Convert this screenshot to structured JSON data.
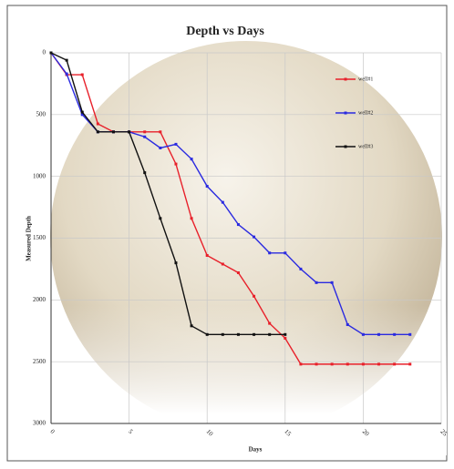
{
  "chart_data": {
    "type": "line",
    "title": "Depth vs Days",
    "x_label": "Days",
    "y_label": "Measured Depth",
    "x": [
      0,
      1,
      2,
      3,
      4,
      5,
      6,
      7,
      8,
      9,
      10,
      11,
      12,
      13,
      14,
      15,
      16,
      17,
      18,
      19,
      20,
      21,
      22,
      23
    ],
    "series": [
      {
        "name": "well#1",
        "color": "#e8202a",
        "values": [
          0,
          177,
          177,
          575,
          640,
          640,
          640,
          640,
          900,
          1340,
          1640,
          1710,
          1780,
          1970,
          2190,
          2310,
          2520,
          2520,
          2520,
          2520,
          2520,
          2520,
          2520,
          2520
        ]
      },
      {
        "name": "well#2",
        "color": "#2a2ae0",
        "values": [
          0,
          170,
          500,
          640,
          640,
          640,
          680,
          770,
          740,
          860,
          1080,
          1210,
          1390,
          1490,
          1620,
          1620,
          1750,
          1860,
          1860,
          2200,
          2280,
          2280,
          2280,
          2280
        ]
      },
      {
        "name": "well#3",
        "color": "#111111",
        "values": [
          0,
          60,
          480,
          640,
          640,
          640,
          970,
          1340,
          1700,
          2210,
          2280,
          2280,
          2280,
          2280,
          2280,
          2280,
          null,
          null,
          null,
          null,
          null,
          null,
          null,
          null
        ]
      }
    ],
    "xlim": [
      0,
      25
    ],
    "xticks": [
      0,
      5,
      10,
      15,
      20,
      25
    ],
    "ylim": [
      0,
      3000
    ],
    "yticks": [
      0,
      500,
      1000,
      1500,
      2000,
      2500,
      3000
    ],
    "y_reversed": true,
    "grid": true
  }
}
